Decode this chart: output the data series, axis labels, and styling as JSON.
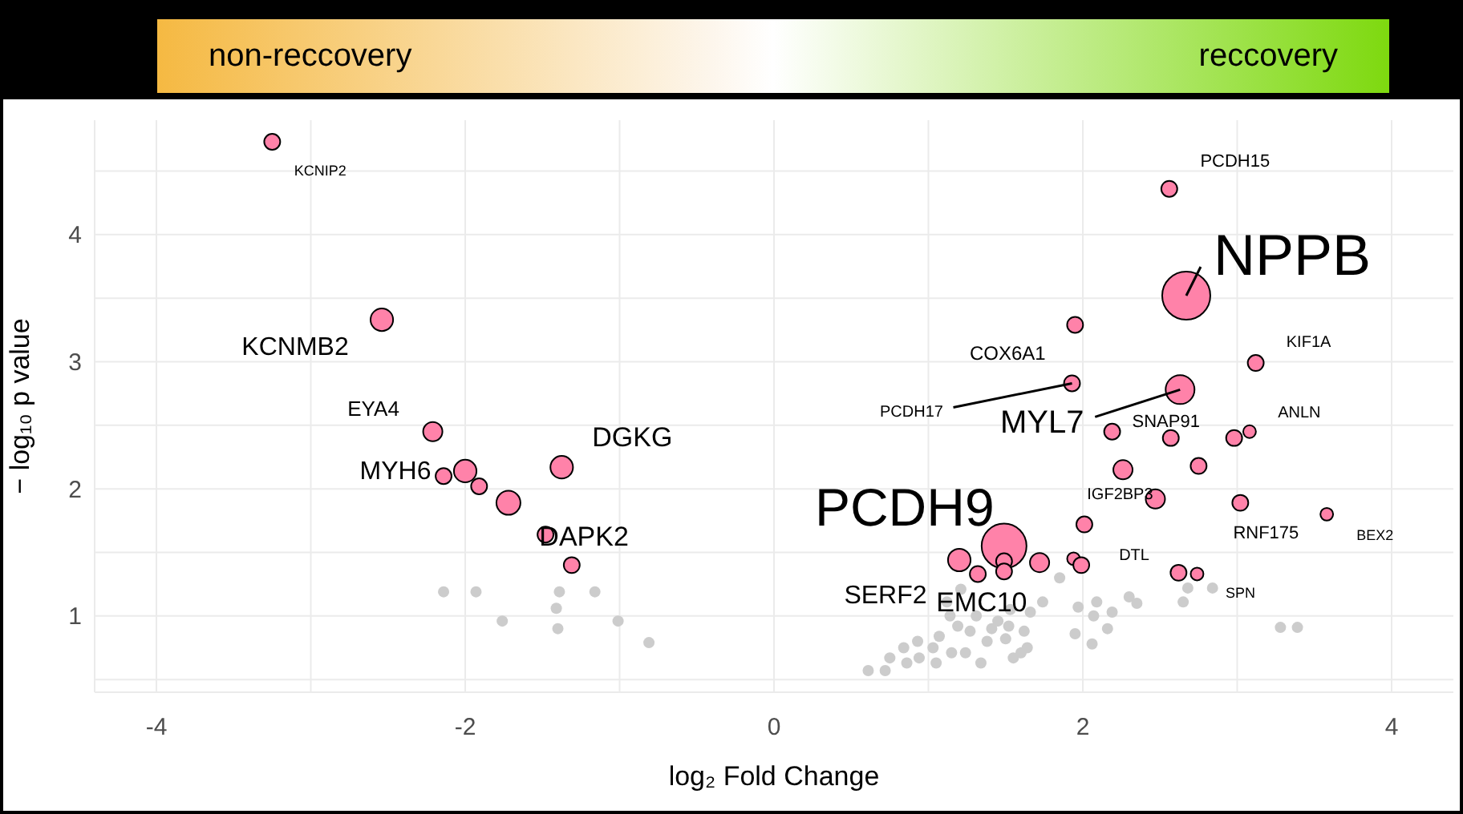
{
  "chart_data": {
    "type": "scatter",
    "xlabel": "log₂ Fold Change",
    "ylabel": "− log₁₀ p value",
    "annotations": [
      "non-reccovery",
      "reccovery"
    ],
    "xlim": [
      -4.4,
      4.4
    ],
    "ylim": [
      0.4,
      4.9
    ],
    "xticks": [
      -4,
      {
        "value": -3,
        "label": null
      },
      -2,
      {
        "value": -1,
        "label": null
      },
      0,
      {
        "value": 1,
        "label": null
      },
      2,
      {
        "value": 3,
        "label": null
      },
      4
    ],
    "yticks": [
      {
        "value": 0.5,
        "label": null
      },
      1,
      {
        "value": 1.5,
        "label": null
      },
      2,
      {
        "value": 2.5,
        "label": null
      },
      3,
      {
        "value": 3.5,
        "label": null
      },
      4,
      {
        "value": 4.5,
        "label": null
      }
    ],
    "grid": true,
    "marker": "circle",
    "series": [
      {
        "color": "#cccccc",
        "x": [
          -2.14,
          -1.93,
          -1.39,
          -1.16,
          -1.41,
          -1.76,
          -1.4,
          -1.01,
          -0.81,
          0.61,
          0.72,
          0.75,
          0.84,
          0.86,
          0.93,
          0.94,
          1.03,
          1.05,
          1.07,
          1.12,
          1.14,
          1.15,
          1.19,
          1.21,
          1.24,
          1.27,
          1.31,
          1.34,
          1.38,
          1.4,
          1.41,
          1.45,
          1.5,
          1.52,
          1.53,
          1.55,
          1.6,
          1.62,
          1.64,
          1.66,
          1.74,
          1.85,
          1.95,
          1.97,
          2.06,
          2.07,
          2.09,
          2.16,
          2.19,
          2.3,
          2.35,
          2.65,
          2.68,
          2.84,
          3.28,
          3.39
        ],
        "values": [
          1.19,
          1.19,
          1.19,
          1.19,
          1.06,
          0.96,
          0.9,
          0.96,
          0.79,
          0.57,
          0.57,
          0.67,
          0.75,
          0.63,
          0.8,
          0.67,
          0.75,
          0.63,
          0.84,
          1.11,
          1.0,
          0.71,
          0.92,
          1.21,
          0.71,
          0.88,
          1.0,
          0.63,
          0.8,
          null,
          0.9,
          0.96,
          0.82,
          0.92,
          1.05,
          0.67,
          0.71,
          0.88,
          0.75,
          1.03,
          1.11,
          1.3,
          0.86,
          1.07,
          0.78,
          1.0,
          1.11,
          0.9,
          1.03,
          1.15,
          1.1,
          1.11,
          1.22,
          1.22,
          0.91,
          0.91
        ]
      },
      {
        "type": "bubble",
        "color": "#ff82a9",
        "x": [
          -3.25,
          -2.54,
          -2.21,
          -2.14,
          -2.0,
          -1.91,
          -1.72,
          -1.375,
          -1.48,
          -1.31,
          2.56,
          2.67,
          1.95,
          3.12,
          1.93,
          2.63,
          2.19,
          2.57,
          2.98,
          3.08,
          2.26,
          2.75,
          2.47,
          3.02,
          3.58,
          2.01,
          1.49,
          1.2,
          1.32,
          1.49,
          1.49,
          1.72,
          1.94,
          1.99,
          2.62,
          2.74
        ],
        "values": [
          4.73,
          3.33,
          2.45,
          2.1,
          2.14,
          2.02,
          1.89,
          2.17,
          1.64,
          1.4,
          4.36,
          3.52,
          3.29,
          2.99,
          2.83,
          2.78,
          2.45,
          2.4,
          2.4,
          2.45,
          2.15,
          2.18,
          1.92,
          1.89,
          1.8,
          1.72,
          1.55,
          1.44,
          1.33,
          1.43,
          1.35,
          1.42,
          1.45,
          1.4,
          1.34,
          1.33
        ],
        "sizes": [
          0.11,
          0.22,
          0.16,
          0.11,
          0.22,
          0.11,
          0.25,
          0.22,
          0.11,
          0.11,
          0.11,
          1,
          0.11,
          0.11,
          0.11,
          0.36,
          0.11,
          0.11,
          0.11,
          0.07,
          0.16,
          0.11,
          0.16,
          0.11,
          0.07,
          0.11,
          0.87,
          0.22,
          0.11,
          0.11,
          0.11,
          0.16,
          0.07,
          0.11,
          0.11,
          0.07
        ],
        "value_labels": [
          "KCNIP2",
          "KCNMB2",
          "EYA4",
          "MYH6",
          null,
          null,
          null,
          "DGKG",
          "DAPK2",
          null,
          "PCDH15",
          "NPPB",
          "COX6A1",
          "KIF1A",
          "PCDH17",
          "MYL7",
          null,
          "SNAP91",
          null,
          "ANLN",
          null,
          null,
          "IGF2BP3",
          "RNF175",
          "BEX2",
          null,
          "PCDH9",
          "SERF2",
          null,
          null,
          "EMC10",
          null,
          null,
          "DTL",
          null,
          "SPN"
        ]
      }
    ]
  }
}
